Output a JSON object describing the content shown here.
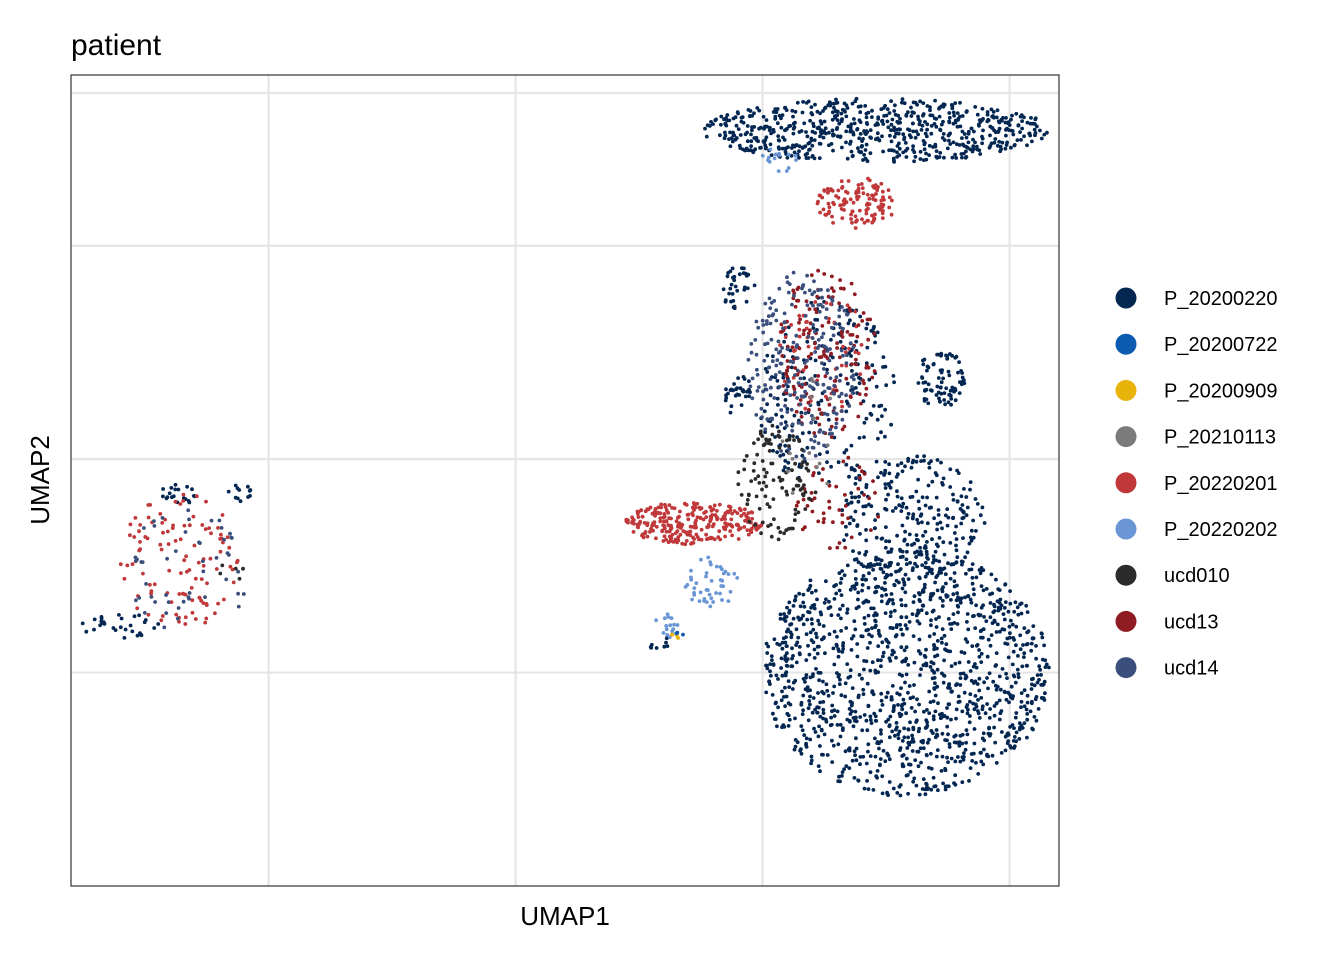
{
  "chart_data": {
    "type": "scatter",
    "title": "patient",
    "xlabel": "UMAP1",
    "ylabel": "UMAP2",
    "xlim": [
      -10,
      10
    ],
    "ylim": [
      -10,
      9
    ],
    "x_ticks": [
      -6,
      -1,
      4,
      9
    ],
    "y_ticks": [
      -5,
      0,
      5
    ],
    "show_tick_labels": false,
    "grid": true,
    "legend_position": "right",
    "legend": [
      {
        "name": "P_20200220",
        "color": "#042752"
      },
      {
        "name": "P_20200722",
        "color": "#0c5bb0"
      },
      {
        "name": "P_20200909",
        "color": "#e8b30b"
      },
      {
        "name": "P_20210113",
        "color": "#7b7b7b"
      },
      {
        "name": "P_20220201",
        "color": "#c0383a"
      },
      {
        "name": "P_20220202",
        "color": "#6b96d6"
      },
      {
        "name": "ucd010",
        "color": "#2b2b2b"
      },
      {
        "name": "ucd13",
        "color": "#8f1c22"
      },
      {
        "name": "ucd14",
        "color": "#3b4f7c"
      }
    ],
    "clusters": [
      {
        "series": "P_20200220",
        "cx": 6.3,
        "cy": 7.7,
        "rx": 3.5,
        "ry": 0.75,
        "n": 650
      },
      {
        "series": "P_20200220",
        "cx": 6.9,
        "cy": -5.0,
        "rx": 2.9,
        "ry": 2.9,
        "n": 1300
      },
      {
        "series": "P_20200220",
        "cx": 7.0,
        "cy": -1.4,
        "rx": 1.5,
        "ry": 1.5,
        "n": 250
      },
      {
        "series": "P_20200220",
        "cx": 5.3,
        "cy": 1.5,
        "rx": 1.4,
        "ry": 2.3,
        "n": 220
      },
      {
        "series": "P_20200220",
        "cx": 7.6,
        "cy": 1.9,
        "rx": 0.5,
        "ry": 0.7,
        "n": 80
      },
      {
        "series": "P_20200220",
        "cx": 3.5,
        "cy": 4.0,
        "rx": 0.35,
        "ry": 0.5,
        "n": 35
      },
      {
        "series": "P_20200220",
        "cx": 3.5,
        "cy": 1.5,
        "rx": 0.3,
        "ry": 0.5,
        "n": 30
      },
      {
        "series": "P_20200220",
        "cx": -9.0,
        "cy": -3.9,
        "rx": 0.8,
        "ry": 0.3,
        "n": 30
      },
      {
        "series": "P_20200220",
        "cx": -7.8,
        "cy": -0.8,
        "rx": 0.4,
        "ry": 0.25,
        "n": 20
      },
      {
        "series": "P_20200220",
        "cx": -6.6,
        "cy": -0.8,
        "rx": 0.3,
        "ry": 0.2,
        "n": 12
      },
      {
        "series": "P_20200220",
        "cx": 1.9,
        "cy": -4.3,
        "rx": 0.2,
        "ry": 0.2,
        "n": 8
      },
      {
        "series": "P_20220201",
        "cx": 2.6,
        "cy": -1.5,
        "rx": 1.4,
        "ry": 0.5,
        "n": 260
      },
      {
        "series": "P_20220201",
        "cx": 5.9,
        "cy": 6.0,
        "rx": 0.8,
        "ry": 0.6,
        "n": 120
      },
      {
        "series": "P_20220201",
        "cx": 5.2,
        "cy": 2.5,
        "rx": 0.9,
        "ry": 1.5,
        "n": 50
      },
      {
        "series": "P_20220201",
        "cx": -7.8,
        "cy": -2.4,
        "rx": 1.2,
        "ry": 1.6,
        "n": 110
      },
      {
        "series": "ucd13",
        "cx": 5.3,
        "cy": 2.5,
        "rx": 1.0,
        "ry": 2.0,
        "n": 150
      },
      {
        "series": "ucd13",
        "cx": 5.5,
        "cy": -1.0,
        "rx": 0.9,
        "ry": 1.1,
        "n": 50
      },
      {
        "series": "ucd14",
        "cx": 4.8,
        "cy": 2.2,
        "rx": 1.1,
        "ry": 2.2,
        "n": 230
      },
      {
        "series": "ucd14",
        "cx": -7.6,
        "cy": -2.6,
        "rx": 1.3,
        "ry": 1.5,
        "n": 50
      },
      {
        "series": "ucd010",
        "cx": 4.3,
        "cy": -0.5,
        "rx": 0.8,
        "ry": 1.4,
        "n": 110
      },
      {
        "series": "ucd010",
        "cx": -6.8,
        "cy": -2.6,
        "rx": 0.3,
        "ry": 0.4,
        "n": 5
      },
      {
        "series": "P_20220202",
        "cx": 2.9,
        "cy": -2.9,
        "rx": 0.6,
        "ry": 0.6,
        "n": 45
      },
      {
        "series": "P_20220202",
        "cx": 2.1,
        "cy": -3.9,
        "rx": 0.3,
        "ry": 0.3,
        "n": 15
      },
      {
        "series": "P_20220202",
        "cx": 4.3,
        "cy": 7.0,
        "rx": 0.4,
        "ry": 0.3,
        "n": 15
      },
      {
        "series": "P_20210113",
        "cx": 4.8,
        "cy": 0.5,
        "rx": 0.8,
        "ry": 1.5,
        "n": 15
      },
      {
        "series": "P_20200909",
        "cx": 2.2,
        "cy": -4.2,
        "rx": 0.1,
        "ry": 0.1,
        "n": 4
      },
      {
        "series": "P_20200722",
        "cx": 2.3,
        "cy": -4.1,
        "rx": 0.1,
        "ry": 0.1,
        "n": 3
      }
    ]
  }
}
